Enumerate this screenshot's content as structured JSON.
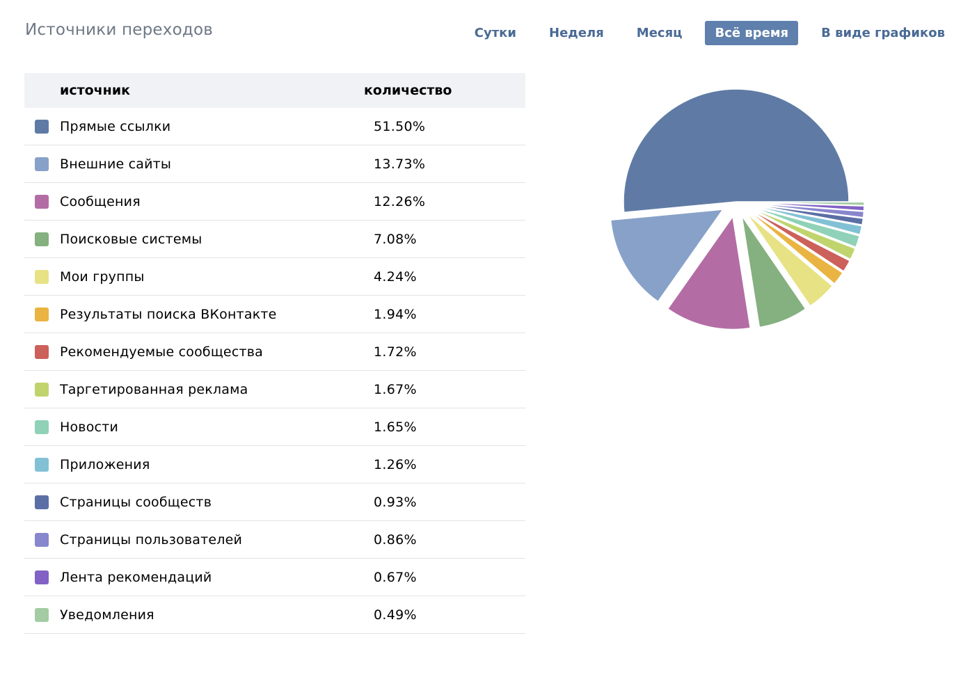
{
  "header": {
    "title": "Источники переходов",
    "tabs": [
      {
        "label": "Сутки",
        "active": false
      },
      {
        "label": "Неделя",
        "active": false
      },
      {
        "label": "Месяц",
        "active": false
      },
      {
        "label": "Всё время",
        "active": true
      },
      {
        "label": "В виде графиков",
        "active": false
      }
    ]
  },
  "table": {
    "col_source": "источник",
    "col_count": "количество"
  },
  "colors": {
    "accent": "#5f80ac",
    "title": "#6d7885",
    "link": "#4a6a95",
    "header_bg": "#f0f2f5"
  },
  "chart_data": {
    "type": "pie",
    "title": "",
    "legend": "table-left",
    "slices": [
      {
        "label": "Прямые ссылки",
        "value": 51.5,
        "display": "51.50%",
        "color": "#5f7ba5"
      },
      {
        "label": "Внешние сайты",
        "value": 13.73,
        "display": "13.73%",
        "color": "#88a1c8"
      },
      {
        "label": "Сообщения",
        "value": 12.26,
        "display": "12.26%",
        "color": "#b36da4"
      },
      {
        "label": "Поисковые системы",
        "value": 7.08,
        "display": "7.08%",
        "color": "#85b07f"
      },
      {
        "label": "Мои группы",
        "value": 4.24,
        "display": "4.24%",
        "color": "#e7e284"
      },
      {
        "label": "Результаты поиска ВКонтакте",
        "value": 1.94,
        "display": "1.94%",
        "color": "#e9b441"
      },
      {
        "label": "Рекомендуемые сообщества",
        "value": 1.72,
        "display": "1.72%",
        "color": "#cc605b"
      },
      {
        "label": "Таргетированная реклама",
        "value": 1.67,
        "display": "1.67%",
        "color": "#c0d46e"
      },
      {
        "label": "Новости",
        "value": 1.65,
        "display": "1.65%",
        "color": "#8fd2b7"
      },
      {
        "label": "Приложения",
        "value": 1.26,
        "display": "1.26%",
        "color": "#82c1d5"
      },
      {
        "label": "Страницы сообществ",
        "value": 0.93,
        "display": "0.93%",
        "color": "#5b6ea5"
      },
      {
        "label": "Страницы пользователей",
        "value": 0.86,
        "display": "0.86%",
        "color": "#8886cc"
      },
      {
        "label": "Лента рекомендаций",
        "value": 0.67,
        "display": "0.67%",
        "color": "#8262c4"
      },
      {
        "label": "Уведомления",
        "value": 0.49,
        "display": "0.49%",
        "color": "#a3cca3"
      }
    ]
  }
}
